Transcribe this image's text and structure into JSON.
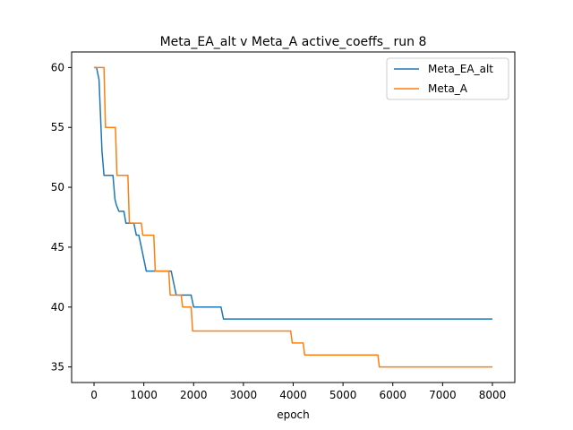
{
  "chart_data": {
    "type": "line",
    "title": "Meta_EA_alt v Meta_A active_coeffs_ run 8",
    "xlabel": "epoch",
    "ylabel": "",
    "xlim": [
      -450,
      8450
    ],
    "ylim": [
      33.7,
      61.3
    ],
    "xticks": [
      0,
      1000,
      2000,
      3000,
      4000,
      5000,
      6000,
      7000,
      8000
    ],
    "yticks": [
      35,
      40,
      45,
      50,
      55,
      60
    ],
    "legend_position": "top-right",
    "grid": false,
    "series": [
      {
        "name": "Meta_EA_alt",
        "color": "#1f77b4",
        "x": [
          0,
          50,
          100,
          130,
          160,
          200,
          250,
          380,
          420,
          450,
          500,
          600,
          640,
          800,
          850,
          900,
          950,
          1000,
          1050,
          1100,
          1500,
          1550,
          1600,
          1650,
          1950,
          2000,
          2550,
          2600,
          8000
        ],
        "y": [
          60,
          60,
          59,
          56,
          53,
          51,
          51,
          51,
          49,
          48.5,
          48,
          48,
          47,
          47,
          46,
          46,
          45,
          44,
          43,
          43,
          43,
          43,
          42,
          41,
          41,
          40,
          40,
          39,
          39
        ]
      },
      {
        "name": "Meta_A",
        "color": "#ff7f0e",
        "x": [
          0,
          200,
          230,
          430,
          460,
          680,
          710,
          950,
          980,
          1200,
          1230,
          1500,
          1530,
          1750,
          1780,
          1950,
          1980,
          3950,
          3980,
          4200,
          4230,
          5700,
          5730,
          8000
        ],
        "y": [
          60,
          60,
          55,
          55,
          51,
          51,
          47,
          47,
          46,
          46,
          43,
          43,
          41,
          41,
          40,
          40,
          38,
          38,
          37,
          37,
          36,
          36,
          35,
          35
        ]
      }
    ]
  }
}
